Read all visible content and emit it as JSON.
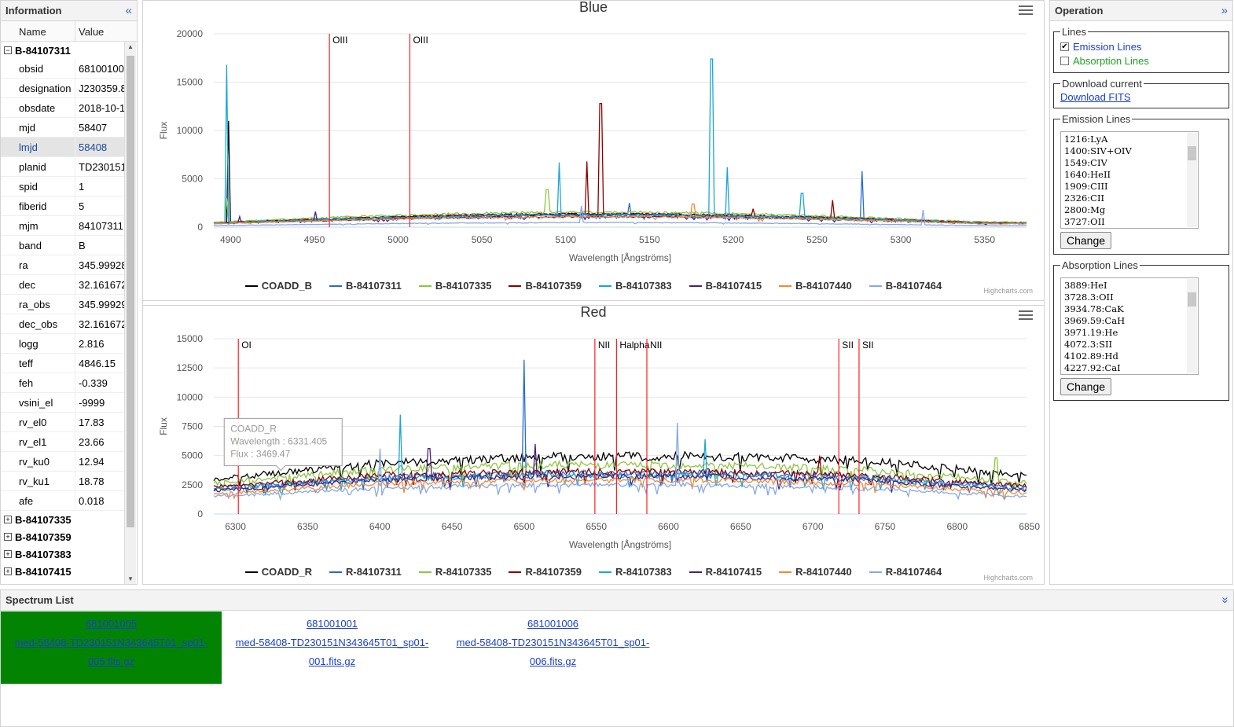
{
  "info": {
    "title": "Information",
    "columns": [
      "Name",
      "Value"
    ],
    "expanded_group": "B-84107311",
    "rows": [
      {
        "name": "obsid",
        "value": "68100100"
      },
      {
        "name": "designation",
        "value": "J230359.8"
      },
      {
        "name": "obsdate",
        "value": "2018-10-1"
      },
      {
        "name": "mjd",
        "value": "58407"
      },
      {
        "name": "lmjd",
        "value": "58408"
      },
      {
        "name": "planid",
        "value": "TD230151"
      },
      {
        "name": "spid",
        "value": "1"
      },
      {
        "name": "fiberid",
        "value": "5"
      },
      {
        "name": "mjm",
        "value": "84107311"
      },
      {
        "name": "band",
        "value": "B"
      },
      {
        "name": "ra",
        "value": "345.99928"
      },
      {
        "name": "dec",
        "value": "32.161672"
      },
      {
        "name": "ra_obs",
        "value": "345.99929"
      },
      {
        "name": "dec_obs",
        "value": "32.161672"
      },
      {
        "name": "logg",
        "value": "2.816"
      },
      {
        "name": "teff",
        "value": "4846.15"
      },
      {
        "name": "feh",
        "value": "-0.339"
      },
      {
        "name": "vsini_el",
        "value": "-9999"
      },
      {
        "name": "rv_el0",
        "value": "17.83"
      },
      {
        "name": "rv_el1",
        "value": "23.66"
      },
      {
        "name": "rv_ku0",
        "value": "12.94"
      },
      {
        "name": "rv_ku1",
        "value": "18.78"
      },
      {
        "name": "afe",
        "value": "0.018"
      }
    ],
    "collapsed_groups": [
      "B-84107335",
      "B-84107359",
      "B-84107383",
      "B-84107415"
    ]
  },
  "operation": {
    "title": "Operation",
    "lines_legend": "Lines",
    "emission_label": "Emission Lines",
    "absorption_label": "Absorption Lines",
    "emission_checked": true,
    "absorption_checked": false,
    "download_legend": "Download current",
    "download_link": "Download FITS",
    "emission_legend": "Emission Lines",
    "emission_list": [
      "1216:LyA",
      "1400:SIV+OIV",
      "1549:CIV",
      "1640:HeII",
      "1909:CIII",
      "2326:CII",
      "2800:Mg",
      "3727:OII"
    ],
    "absorption_legend": "Absorption Lines",
    "absorption_list": [
      "3889:HeI",
      "3728.3:OII",
      "3934.78:CaK",
      "3969.59:CaH",
      "3971.19:He",
      "4072.3:SII",
      "4102.89:Hd",
      "4227.92:CaI"
    ],
    "change_label": "Change"
  },
  "spectrum_list": {
    "title": "Spectrum List",
    "items": [
      {
        "id": "681001005",
        "file_a": "med-58408-TD230151N343645T01_sp01-",
        "file_b": "005.fits.gz",
        "active": true
      },
      {
        "id": "681001001",
        "file_a": "med-58408-TD230151N343645T01_sp01-",
        "file_b": "001.fits.gz",
        "active": false
      },
      {
        "id": "681001006",
        "file_a": "med-58408-TD230151N343645T01_sp01-",
        "file_b": "006.fits.gz",
        "active": false
      }
    ]
  },
  "chart_data": [
    {
      "type": "line",
      "title": "Blue",
      "xlabel": "Wavelength [Ångströms]",
      "ylabel": "Flux",
      "xlim": [
        4890,
        5375
      ],
      "ylim": [
        0,
        20000
      ],
      "xticks": [
        4900,
        4950,
        5000,
        5050,
        5100,
        5150,
        5200,
        5250,
        5300,
        5350
      ],
      "yticks": [
        0,
        5000,
        10000,
        15000,
        20000
      ],
      "grid": true,
      "legend_position": "bottom",
      "credit": "Highcharts.com",
      "line_markers": [
        {
          "x": 4959,
          "label": "OIII"
        },
        {
          "x": 5007,
          "label": "OIII"
        }
      ],
      "series": [
        {
          "name": "COADD_B",
          "color": "#000000",
          "level": 1000,
          "spikes": [
            [
              4899,
              11000
            ]
          ]
        },
        {
          "name": "B-84107311",
          "color": "#2a6ad4",
          "level": 900,
          "spikes": [
            [
              5277,
              5800
            ],
            [
              5138,
              2500
            ]
          ]
        },
        {
          "name": "B-84107335",
          "color": "#8cc63f",
          "level": 1150,
          "spikes": [
            [
              5089,
              3900
            ],
            [
              4898,
              3000
            ]
          ]
        },
        {
          "name": "B-84107359",
          "color": "#8b0000",
          "level": 1000,
          "spikes": [
            [
              5121,
              12800
            ],
            [
              5113,
              6800
            ],
            [
              5259,
              2800
            ],
            [
              5212,
              1900
            ]
          ]
        },
        {
          "name": "B-84107383",
          "color": "#1aa6d9",
          "level": 950,
          "spikes": [
            [
              4898,
              16800
            ],
            [
              5187,
              17400
            ],
            [
              5096,
              6700
            ],
            [
              5196,
              6200
            ],
            [
              5241,
              3500
            ]
          ]
        },
        {
          "name": "B-84107415",
          "color": "#4b1f7a",
          "level": 800,
          "spikes": [
            [
              4951,
              1600
            ],
            [
              4905,
              1100
            ]
          ]
        },
        {
          "name": "B-84107440",
          "color": "#f08a35",
          "level": 800,
          "spikes": [
            [
              5176,
              2400
            ]
          ]
        },
        {
          "name": "B-84107464",
          "color": "#86a8e8",
          "level": 350,
          "spikes": [
            [
              5109,
              2200
            ],
            [
              5313,
              1800
            ]
          ]
        }
      ]
    },
    {
      "type": "line",
      "title": "Red",
      "xlabel": "Wavelength [Ångströms]",
      "ylabel": "Flux",
      "xlim": [
        6285,
        6848
      ],
      "ylim": [
        0,
        15000
      ],
      "xticks": [
        6300,
        6350,
        6400,
        6450,
        6500,
        6550,
        6600,
        6650,
        6700,
        6750,
        6800,
        6850
      ],
      "yticks": [
        0,
        2500,
        5000,
        7500,
        10000,
        12500,
        15000
      ],
      "grid": true,
      "legend_position": "bottom",
      "credit": "Highcharts.com",
      "line_markers": [
        {
          "x": 6302,
          "label": "OI"
        },
        {
          "x": 6549,
          "label": "NII"
        },
        {
          "x": 6564,
          "label": "Halpha"
        },
        {
          "x": 6585,
          "label": "NII"
        },
        {
          "x": 6718,
          "label": "SII"
        },
        {
          "x": 6732,
          "label": "SII"
        }
      ],
      "tooltip": {
        "series": "COADD_R",
        "x_label": "Wavelength : 6331.405",
        "y_label": "Flux : 3469.47"
      },
      "series": [
        {
          "name": "COADD_R",
          "color": "#000000",
          "profile": [
            3000,
            4300,
            4900,
            4950,
            4600,
            3300
          ],
          "spikes": []
        },
        {
          "name": "R-84107311",
          "color": "#2a6ad4",
          "profile": [
            2200,
            3200,
            3500,
            3500,
            3200,
            2300
          ],
          "spikes": [
            [
              6500,
              13200
            ]
          ]
        },
        {
          "name": "R-84107335",
          "color": "#8cc63f",
          "profile": [
            2600,
            3800,
            4200,
            4200,
            3800,
            2700
          ],
          "spikes": [
            [
              6827,
              4800
            ]
          ]
        },
        {
          "name": "R-84107359",
          "color": "#8b0000",
          "profile": [
            2300,
            3300,
            3600,
            3600,
            3300,
            2400
          ],
          "spikes": [
            [
              6705,
              5000
            ]
          ]
        },
        {
          "name": "R-84107383",
          "color": "#1aa6d9",
          "profile": [
            2100,
            3000,
            3300,
            3300,
            3000,
            2100
          ],
          "spikes": [
            [
              6414,
              8500
            ],
            [
              6625,
              6400
            ]
          ]
        },
        {
          "name": "R-84107415",
          "color": "#4b1f7a",
          "profile": [
            2000,
            2900,
            3200,
            3200,
            2900,
            2000
          ],
          "spikes": [
            [
              6434,
              5600
            ],
            [
              6508,
              6000
            ]
          ]
        },
        {
          "name": "R-84107440",
          "color": "#f08a35",
          "profile": [
            1700,
            2600,
            2900,
            2900,
            2600,
            1800
          ],
          "spikes": []
        },
        {
          "name": "R-84107464",
          "color": "#86a8e8",
          "profile": [
            1500,
            2200,
            2500,
            2500,
            2200,
            1500
          ],
          "spikes": [
            [
              6606,
              7800
            ],
            [
              6400,
              5600
            ]
          ]
        }
      ]
    }
  ]
}
